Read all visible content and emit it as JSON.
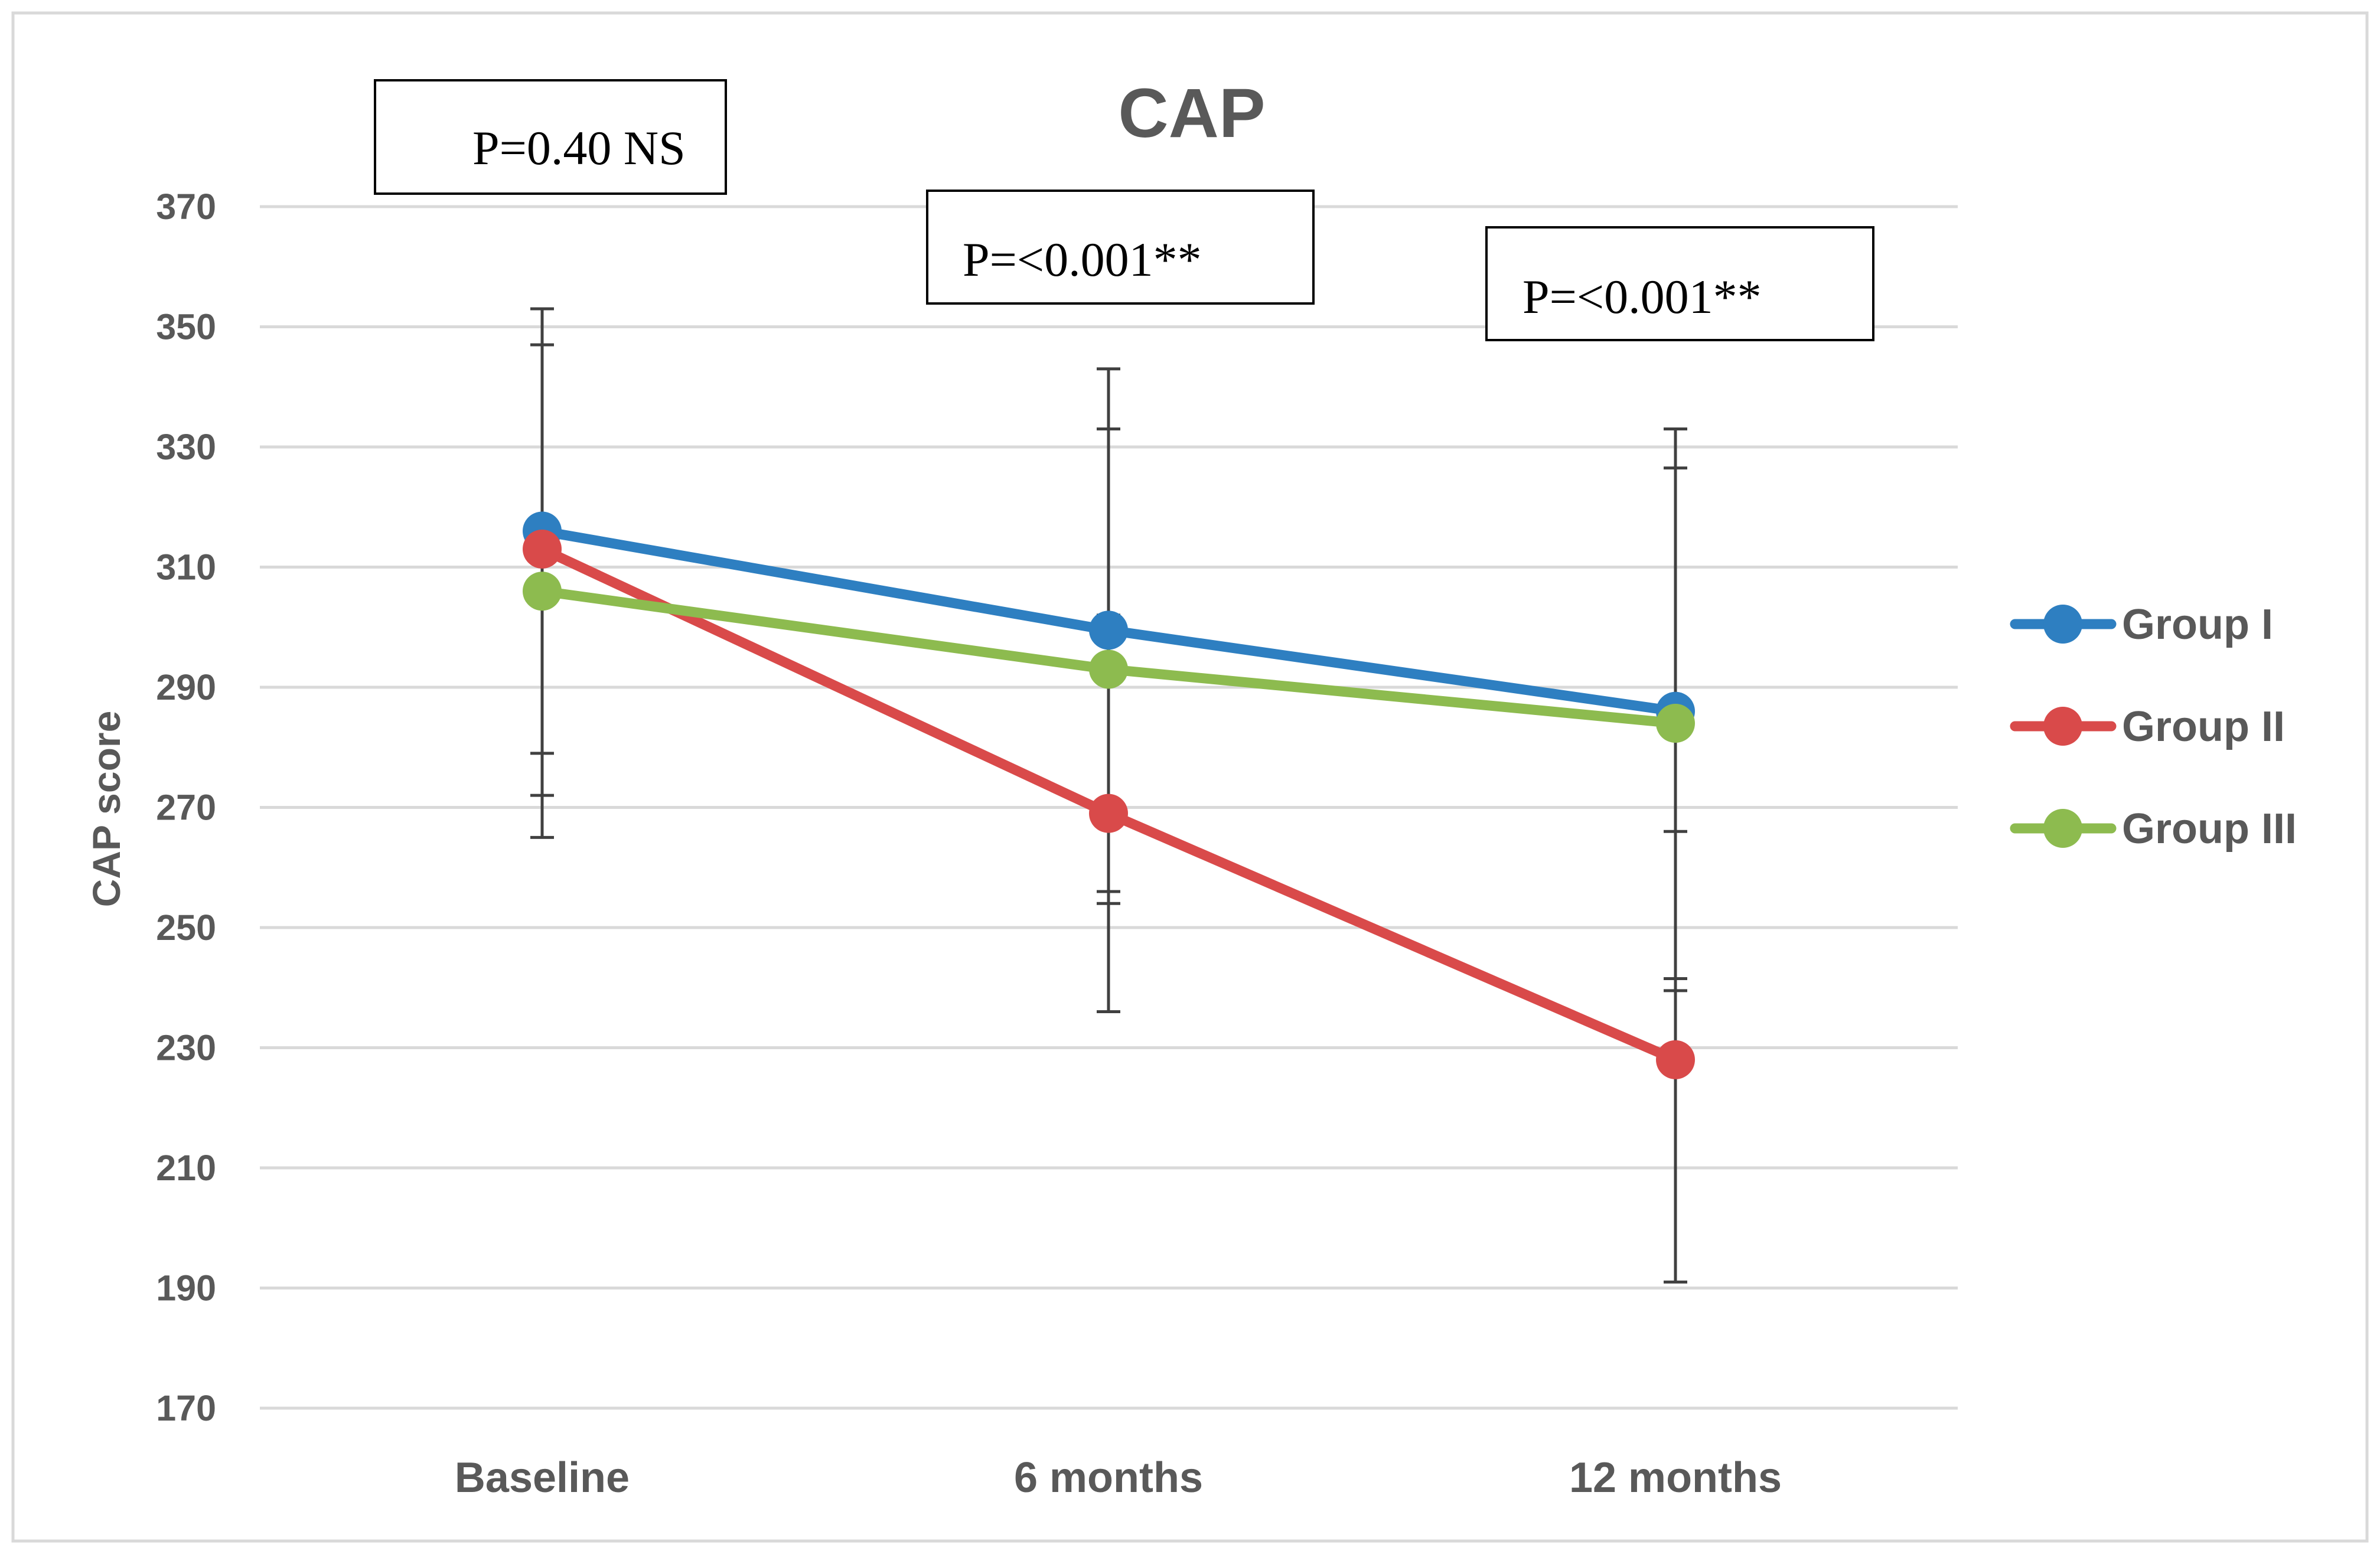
{
  "chart_data": {
    "type": "line",
    "title": "CAP",
    "xlabel": "",
    "ylabel": "CAP score",
    "categories": [
      "Baseline",
      "6 months",
      "12 months"
    ],
    "ylim": [
      170,
      370
    ],
    "yticks": [
      170,
      190,
      210,
      230,
      250,
      270,
      290,
      310,
      330,
      350,
      370
    ],
    "grid": true,
    "legend_position": "right",
    "series": [
      {
        "name": "Group I",
        "color": "#2e7fc1",
        "values": [
          316,
          299.5,
          286
        ],
        "error_low": [
          279,
          256,
          239.5
        ],
        "error_high": [
          353,
          343,
          333
        ]
      },
      {
        "name": "Group II",
        "color": "#d94a4a",
        "values": [
          313,
          269,
          228
        ],
        "error_low": [
          272,
          236,
          191
        ],
        "error_high": [
          353,
          302,
          266
        ]
      },
      {
        "name": "Group III",
        "color": "#8dbb4f",
        "values": [
          306,
          293,
          284
        ],
        "error_low": [
          265,
          254,
          241.5
        ],
        "error_high": [
          347,
          333,
          326.5
        ]
      }
    ],
    "annotations": [
      "P=0.40 NS",
      "P=<0.001**",
      "P=<0.001**"
    ]
  }
}
